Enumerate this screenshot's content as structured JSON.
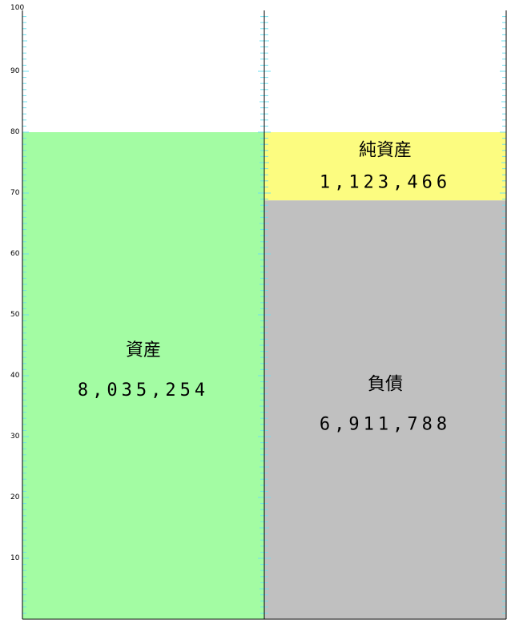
{
  "chart_data": {
    "type": "bar",
    "ylim": [
      0,
      100
    ],
    "y_ticks": [
      "10",
      "20",
      "30",
      "40",
      "50",
      "60",
      "70",
      "80",
      "90",
      "100"
    ],
    "grid": false,
    "columns": [
      {
        "blocks": [
          {
            "label": "資産",
            "value": "8,035,254",
            "share": 80.0,
            "color": "#a3fca3"
          }
        ]
      },
      {
        "blocks": [
          {
            "label": "負債",
            "value": "6,911,788",
            "share": 68.8,
            "color": "#c0c0c0"
          },
          {
            "label": "純資産",
            "value": "1,123,466",
            "share": 11.2,
            "color": "#fcfc80"
          }
        ]
      }
    ]
  }
}
